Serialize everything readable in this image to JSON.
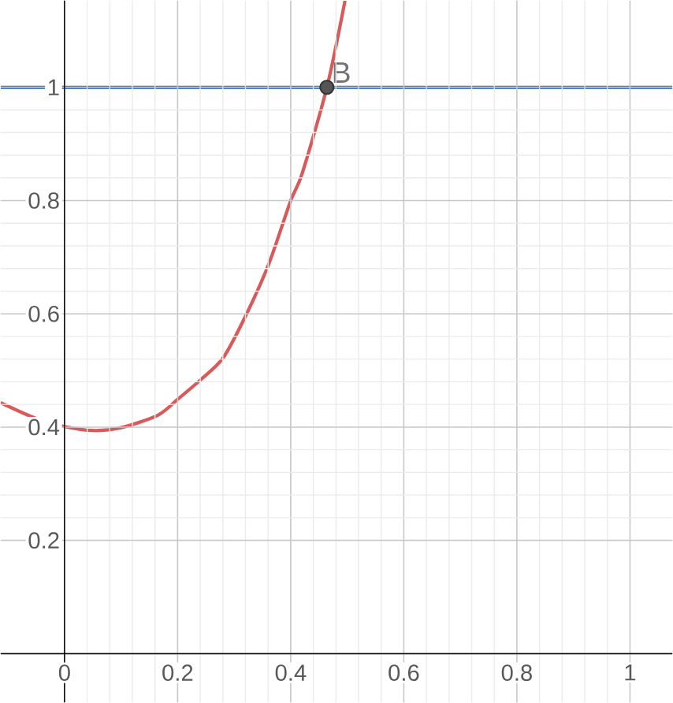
{
  "chart_data": {
    "type": "line",
    "xlim": [
      -0.113,
      1.075
    ],
    "ylim": [
      -0.086,
      1.153
    ],
    "xticks": [
      0,
      0.2,
      0.4,
      0.6,
      0.8,
      1
    ],
    "yticks": [
      0.2,
      0.4,
      0.6,
      0.8,
      1
    ],
    "grid": true,
    "series": [
      {
        "color": "#d95a5a",
        "x": [
          -0.113,
          -0.05,
          0,
          0.05,
          0.1,
          0.165,
          0.2,
          0.24,
          0.281,
          0.323,
          0.362,
          0.4,
          0.42,
          0.464,
          0.496
        ],
        "values": [
          0.443,
          0.415,
          0.401,
          0.394,
          0.399,
          0.421,
          0.449,
          0.483,
          0.523,
          0.602,
          0.69,
          0.8,
          0.847,
          1,
          1.153
        ]
      },
      {
        "type": "scatter",
        "name": "B",
        "color": "#555555",
        "x": [
          0.464
        ],
        "values": [
          1
        ]
      }
    ],
    "ref_lines": [
      {
        "axis": "y",
        "value": 1,
        "color": "#3d7cc9"
      }
    ]
  }
}
